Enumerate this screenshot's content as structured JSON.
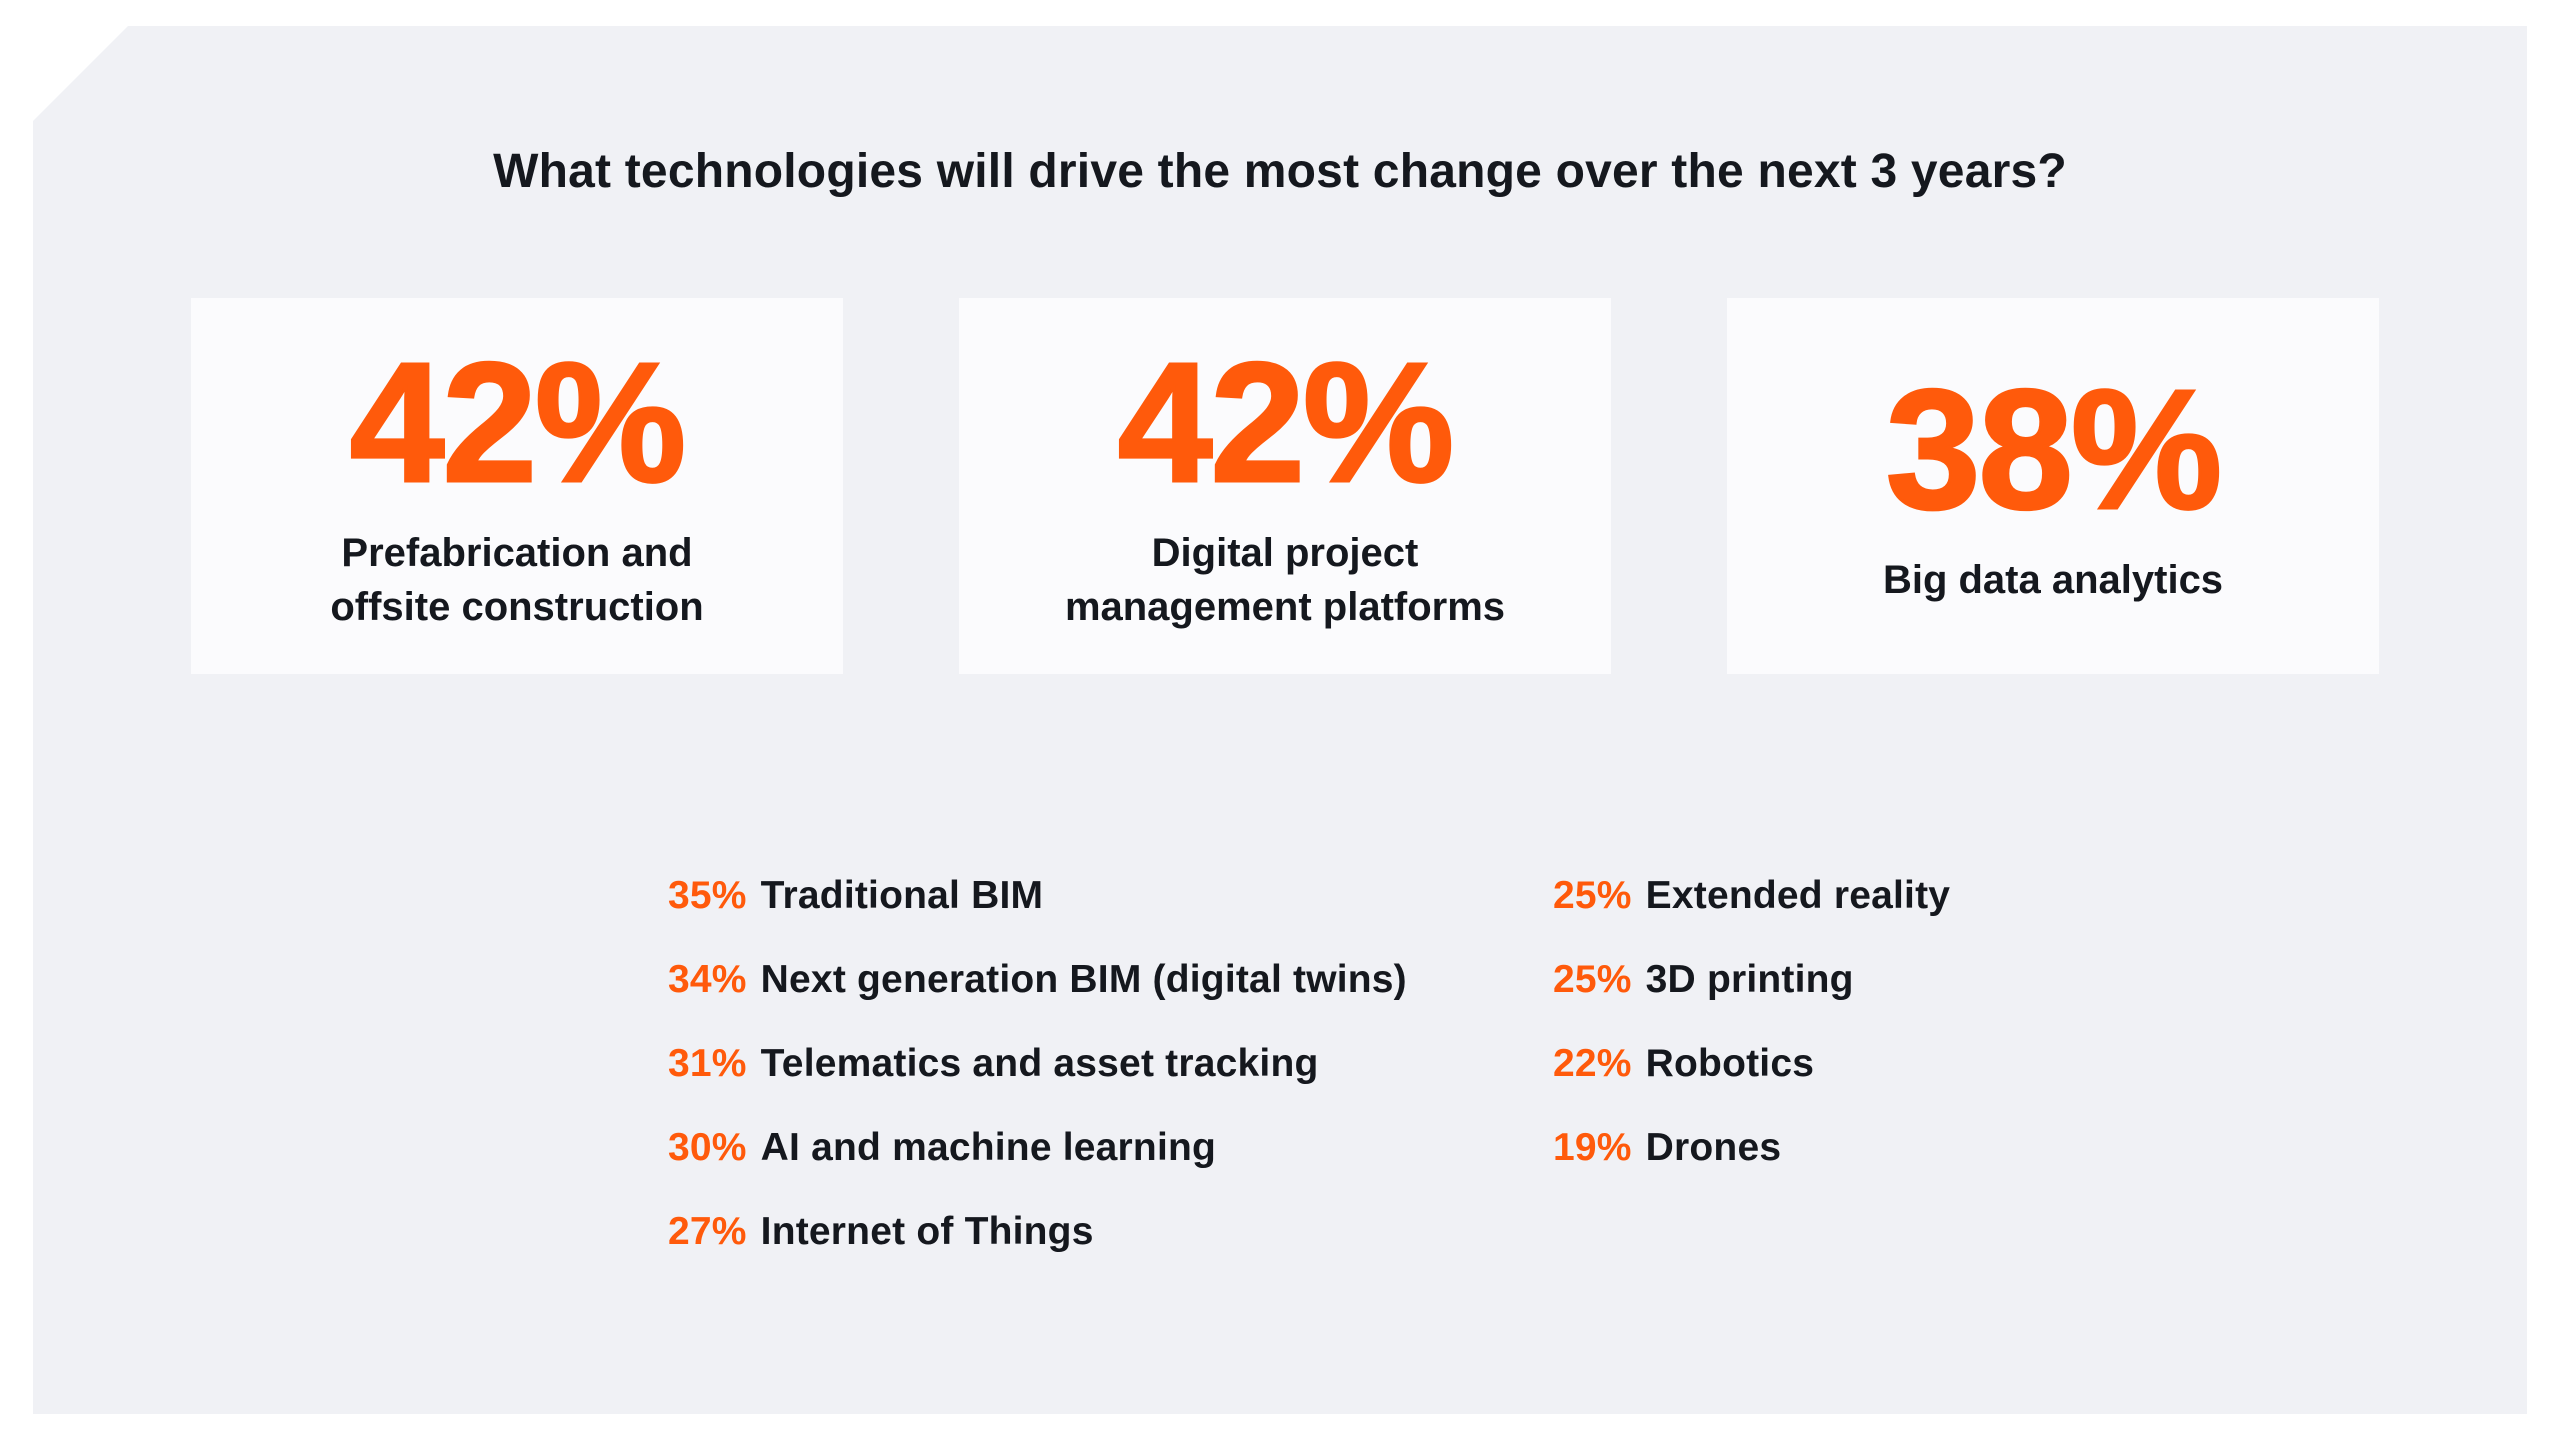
{
  "title": "What technologies will drive the most change over the next 3 years?",
  "colors": {
    "accent": "#FF5A0B",
    "panel_background": "#F0F1F5",
    "card_background": "#FBFBFD",
    "text": "#15181E",
    "page_background": "#FFFFFF"
  },
  "cards": [
    {
      "value": "42%",
      "label": "Prefabrication and\noffsite construction"
    },
    {
      "value": "42%",
      "label": "Digital project\nmanagement platforms"
    },
    {
      "value": "38%",
      "label": "Big data analytics"
    }
  ],
  "list_left": [
    {
      "value": "35%",
      "label": "Traditional BIM"
    },
    {
      "value": "34%",
      "label": "Next generation BIM (digital twins)"
    },
    {
      "value": "31%",
      "label": "Telematics and asset tracking"
    },
    {
      "value": "30%",
      "label": "AI and machine learning"
    },
    {
      "value": "27%",
      "label": "Internet of Things"
    }
  ],
  "list_right": [
    {
      "value": "25%",
      "label": "Extended reality"
    },
    {
      "value": "25%",
      "label": "3D printing"
    },
    {
      "value": "22%",
      "label": "Robotics"
    },
    {
      "value": "19%",
      "label": "Drones"
    }
  ],
  "chart_data": {
    "type": "table",
    "title": "What technologies will drive the most change over the next 3 years?",
    "unit": "%",
    "categories": [
      "Prefabrication and offsite construction",
      "Digital project management platforms",
      "Big data analytics",
      "Traditional BIM",
      "Next generation BIM (digital twins)",
      "Telematics and asset tracking",
      "AI and machine learning",
      "Internet of Things",
      "Extended reality",
      "3D printing",
      "Robotics",
      "Drones"
    ],
    "values": [
      42,
      42,
      38,
      35,
      34,
      31,
      30,
      27,
      25,
      25,
      22,
      19
    ]
  }
}
